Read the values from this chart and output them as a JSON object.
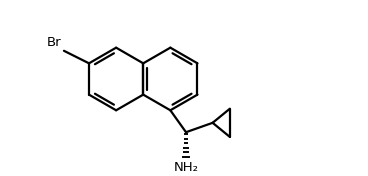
{
  "bg_color": "#ffffff",
  "line_color": "#000000",
  "line_width": 1.6,
  "br_label": "Br",
  "nh2_label": "NH₂",
  "figsize": [
    3.68,
    1.76
  ],
  "dpi": 100,
  "xlim": [
    -0.5,
    7.5
  ],
  "ylim": [
    -2.8,
    3.0
  ]
}
